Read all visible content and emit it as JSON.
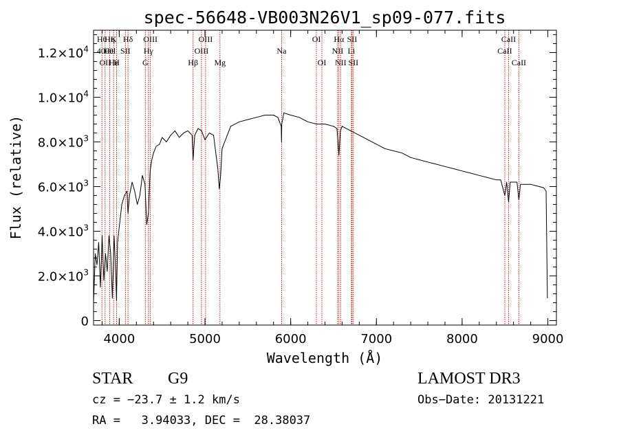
{
  "chart_data": {
    "type": "line",
    "title": "spec-56648-VB003N26V1_sp09-077.fits",
    "xlabel": "Wavelength (Å)",
    "ylabel": "Flux (relative)",
    "xlim": [
      3700,
      9100
    ],
    "ylim": [
      -200,
      13000
    ],
    "xticks": [
      {
        "value": 4000,
        "label": "4000"
      },
      {
        "value": 5000,
        "label": "5000"
      },
      {
        "value": 6000,
        "label": "6000"
      },
      {
        "value": 7000,
        "label": "7000"
      },
      {
        "value": 8000,
        "label": "8000"
      },
      {
        "value": 9000,
        "label": "9000"
      }
    ],
    "yticks": [
      {
        "value": 0,
        "mant": "0",
        "exp": ""
      },
      {
        "value": 2000,
        "mant": "2.0×10",
        "exp": "3"
      },
      {
        "value": 4000,
        "mant": "4.0×10",
        "exp": "3"
      },
      {
        "value": 6000,
        "mant": "6.0×10",
        "exp": "3"
      },
      {
        "value": 8000,
        "mant": "8.0×10",
        "exp": "3"
      },
      {
        "value": 10000,
        "mant": "1.0×10",
        "exp": "4"
      },
      {
        "value": 12000,
        "mant": "1.2×10",
        "exp": "4"
      }
    ],
    "grid": false,
    "series": [
      {
        "color": "#000000",
        "x": [
          3700,
          3720,
          3740,
          3760,
          3780,
          3800,
          3820,
          3840,
          3860,
          3880,
          3900,
          3920,
          3940,
          3960,
          3968,
          3980,
          4000,
          4030,
          4060,
          4090,
          4102,
          4120,
          4150,
          4180,
          4210,
          4240,
          4270,
          4300,
          4320,
          4340,
          4360,
          4380,
          4400,
          4430,
          4470,
          4500,
          4550,
          4600,
          4650,
          4700,
          4750,
          4800,
          4850,
          4861,
          4880,
          4920,
          4960,
          5000,
          5050,
          5100,
          5150,
          5167,
          5183,
          5200,
          5250,
          5300,
          5400,
          5500,
          5600,
          5700,
          5800,
          5850,
          5890,
          5893,
          5896,
          5920,
          6000,
          6100,
          6200,
          6300,
          6400,
          6500,
          6540,
          6563,
          6580,
          6600,
          6700,
          6800,
          6900,
          7000,
          7100,
          7200,
          7300,
          7400,
          7500,
          7600,
          7700,
          7800,
          7900,
          8000,
          8100,
          8200,
          8300,
          8400,
          8450,
          8498,
          8520,
          8542,
          8560,
          8600,
          8640,
          8662,
          8680,
          8750,
          8800,
          8850,
          8900,
          8950,
          8980,
          8995
        ],
        "y": [
          800,
          3000,
          2500,
          3500,
          1500,
          3800,
          1800,
          3000,
          2200,
          3800,
          3000,
          1000,
          3800,
          2000,
          900,
          3500,
          4200,
          5200,
          5600,
          5800,
          4800,
          5600,
          6200,
          5800,
          5200,
          5600,
          6500,
          6100,
          4300,
          4800,
          6700,
          7200,
          7500,
          7800,
          7900,
          8200,
          8000,
          8300,
          8500,
          8200,
          8400,
          8500,
          8300,
          7200,
          8300,
          8600,
          8500,
          8100,
          8400,
          8300,
          6800,
          5900,
          6500,
          7700,
          8200,
          8700,
          8900,
          9000,
          9100,
          9200,
          9200,
          9100,
          8700,
          8000,
          8800,
          9300,
          9200,
          9100,
          8900,
          8800,
          8800,
          8700,
          8600,
          7400,
          8500,
          8700,
          8500,
          8300,
          8100,
          7900,
          7700,
          7600,
          7500,
          7300,
          7200,
          7100,
          7000,
          6900,
          6800,
          6700,
          6600,
          6500,
          6400,
          6300,
          6300,
          5600,
          6200,
          5300,
          6200,
          6200,
          6200,
          5400,
          6100,
          6100,
          6100,
          6050,
          6000,
          5950,
          5800,
          1000
        ]
      }
    ]
  },
  "lines": [
    {
      "x": 3798,
      "labels": [
        {
          "text": "Hθ",
          "row": 0
        }
      ]
    },
    {
      "x": 3835,
      "labels": [
        {
          "text": "4000",
          "row": 1
        },
        {
          "text": "OII",
          "row": 2
        }
      ]
    },
    {
      "x": 3889,
      "labels": [
        {
          "text": "Hη",
          "row": 0
        },
        {
          "text": "Hel",
          "row": 1
        }
      ]
    },
    {
      "x": 3934,
      "labels": [
        {
          "text": "K",
          "row": 0
        },
        {
          "text": "Hε",
          "row": 2
        }
      ]
    },
    {
      "x": 3969,
      "labels": [
        {
          "text": "H",
          "row": 2
        }
      ]
    },
    {
      "x": 4072,
      "labels": [
        {
          "text": "SII",
          "row": 1
        }
      ]
    },
    {
      "x": 4102,
      "labels": [
        {
          "text": "Hδ",
          "row": 0
        }
      ]
    },
    {
      "x": 4304,
      "labels": [
        {
          "text": "G",
          "row": 2
        }
      ]
    },
    {
      "x": 4341,
      "labels": [
        {
          "text": "Hγ",
          "row": 1
        }
      ]
    },
    {
      "x": 4363,
      "labels": [
        {
          "text": "OIII",
          "row": 0
        }
      ]
    },
    {
      "x": 4861,
      "labels": [
        {
          "text": "Hβ",
          "row": 2
        }
      ]
    },
    {
      "x": 4959,
      "labels": [
        {
          "text": "OIII",
          "row": 1
        }
      ]
    },
    {
      "x": 5007,
      "labels": [
        {
          "text": "OIII",
          "row": 0
        }
      ]
    },
    {
      "x": 5175,
      "labels": [
        {
          "text": "Mg",
          "row": 2
        }
      ]
    },
    {
      "x": 5894,
      "labels": [
        {
          "text": "Na",
          "row": 1
        }
      ]
    },
    {
      "x": 6300,
      "labels": [
        {
          "text": "OI",
          "row": 0
        }
      ]
    },
    {
      "x": 6364,
      "labels": [
        {
          "text": "OI",
          "row": 2
        }
      ]
    },
    {
      "x": 6548,
      "labels": [
        {
          "text": "NII",
          "row": 1
        }
      ]
    },
    {
      "x": 6563,
      "labels": [
        {
          "text": "Hα",
          "row": 0
        }
      ]
    },
    {
      "x": 6583,
      "labels": [
        {
          "text": "NII",
          "row": 2
        }
      ]
    },
    {
      "x": 6708,
      "labels": [
        {
          "text": "Li",
          "row": 1
        }
      ]
    },
    {
      "x": 6716,
      "labels": [
        {
          "text": "SII",
          "row": 0
        }
      ]
    },
    {
      "x": 6731,
      "labels": [
        {
          "text": "SII",
          "row": 2
        }
      ]
    },
    {
      "x": 8498,
      "labels": [
        {
          "text": "CaII",
          "row": 1
        }
      ]
    },
    {
      "x": 8542,
      "labels": [
        {
          "text": "CaII",
          "row": 0
        }
      ]
    },
    {
      "x": 8662,
      "labels": [
        {
          "text": "CaII",
          "row": 2
        }
      ]
    }
  ],
  "info": {
    "object_type": "STAR",
    "subclass": "G9",
    "survey": "LAMOST DR3",
    "cz": "cz = −23.7 ± 1.2 km/s",
    "obs_date": "Obs−Date: 20131221",
    "radec": "RA =   3.94033, DEC =  28.38037"
  }
}
